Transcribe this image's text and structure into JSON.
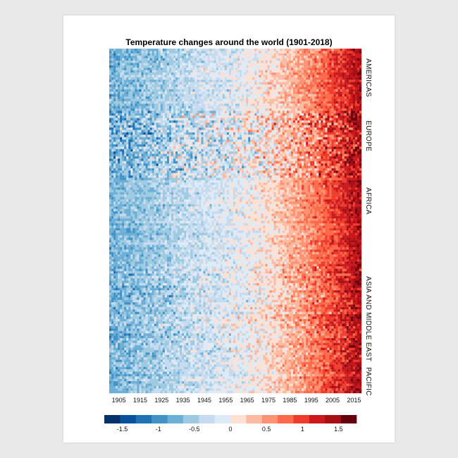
{
  "chart_data": {
    "type": "heatmap",
    "title": "Temperature changes around the world (1901-2018)",
    "x_range": [
      1901,
      2018
    ],
    "x_ticks": [
      "1905",
      "1915",
      "1925",
      "1935",
      "1945",
      "1955",
      "1965",
      "1975",
      "1985",
      "1995",
      "2005",
      "2015"
    ],
    "regions": [
      {
        "name": "AMERICAS",
        "rows": 26
      },
      {
        "name": "EUROPE",
        "rows": 28
      },
      {
        "name": "AFRICA",
        "rows": 37
      },
      {
        "name": "ASIA AND MIDDLE EAST",
        "rows": 38
      },
      {
        "name": "PACIFIC",
        "rows": 15
      }
    ],
    "color_scale": {
      "min": -1.75,
      "max": 1.75,
      "ticks": [
        "-1.5",
        "-1",
        "-0.5",
        "0",
        "0.5",
        "1",
        "1.5"
      ],
      "colors": [
        "#08306b",
        "#08519c",
        "#2171b5",
        "#4292c6",
        "#6baed6",
        "#9ecae1",
        "#c6dbef",
        "#deebf7",
        "#fee0d2",
        "#fcbba1",
        "#fc9272",
        "#fb6a4a",
        "#ef3b2c",
        "#cb181d",
        "#a50f15",
        "#67000d"
      ]
    },
    "trend": {
      "start_year": 1901,
      "start_value": -0.75,
      "mid_year": 1950,
      "mid_value": -0.2,
      "end_year": 2018,
      "end_value": 1.4
    }
  }
}
